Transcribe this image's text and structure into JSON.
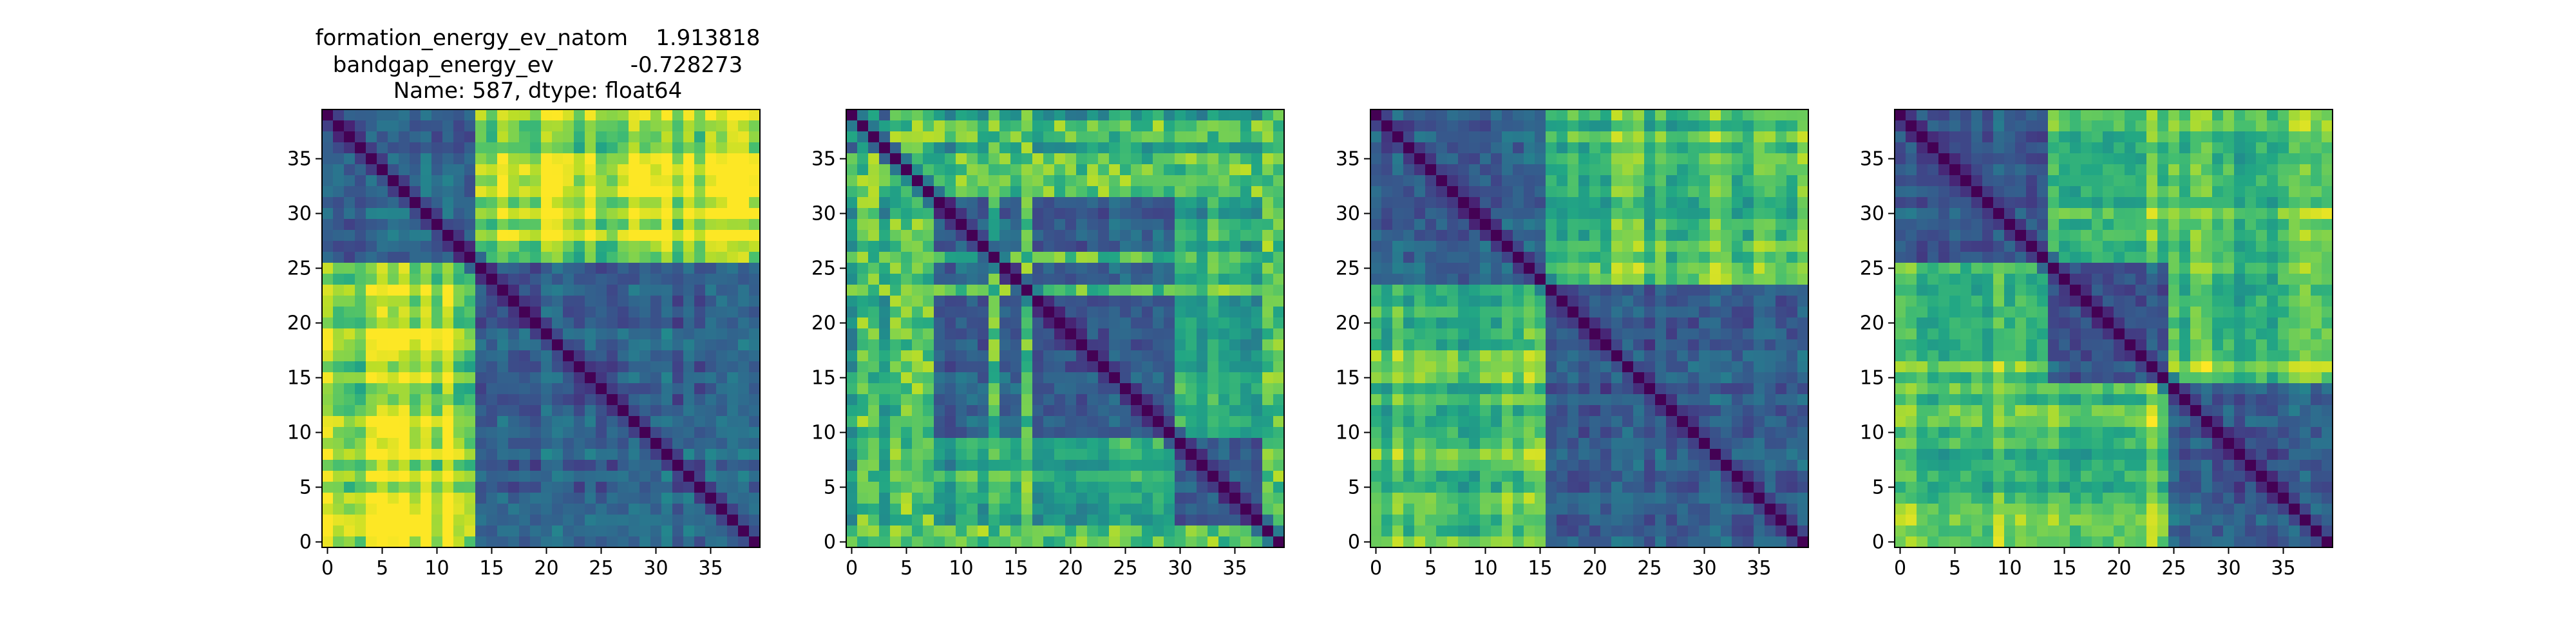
{
  "figure": {
    "background": "#ffffff",
    "title_lines": [
      "formation_energy_ev_natom    1.913818",
      "bandgap_energy_ev           -0.728273",
      "Name: 587, dtype: float64"
    ]
  },
  "chart_data": [
    {
      "type": "heatmap",
      "colormap": "viridis",
      "n": 40,
      "xlim": [
        -0.5,
        39.5
      ],
      "ylim": [
        39.5,
        -0.5
      ],
      "xticks": [
        0,
        5,
        10,
        15,
        20,
        25,
        30,
        35
      ],
      "yticks": [
        0,
        5,
        10,
        15,
        20,
        25,
        30,
        35
      ],
      "grid": false,
      "blocks": [
        {
          "start": 0,
          "end": 14
        },
        {
          "start": 14,
          "end": 40
        }
      ],
      "off_diag_value": 0.88,
      "within_value": 0.32,
      "diagonal_value": 0.0
    },
    {
      "type": "heatmap",
      "colormap": "viridis",
      "n": 40,
      "xlim": [
        -0.5,
        39.5
      ],
      "ylim": [
        39.5,
        -0.5
      ],
      "xticks": [
        0,
        5,
        10,
        15,
        20,
        25,
        30,
        35
      ],
      "yticks": [
        0,
        5,
        10,
        15,
        20,
        25,
        30,
        35
      ],
      "grid": false,
      "bright_rows": [
        1,
        2,
        4,
        5,
        6,
        7,
        13,
        16,
        38,
        39
      ],
      "blocks": [
        {
          "start": 0,
          "end": 8
        },
        {
          "start": 8,
          "end": 30
        },
        {
          "start": 30,
          "end": 40
        }
      ],
      "off_diag_value": 0.62,
      "within_value": 0.3,
      "diagonal_value": 0.0
    },
    {
      "type": "heatmap",
      "colormap": "viridis",
      "n": 40,
      "xlim": [
        -0.5,
        39.5
      ],
      "ylim": [
        39.5,
        -0.5
      ],
      "xticks": [
        0,
        5,
        10,
        15,
        20,
        25,
        30,
        35
      ],
      "yticks": [
        0,
        5,
        10,
        15,
        20,
        25,
        30,
        35
      ],
      "grid": false,
      "blocks": [
        {
          "start": 0,
          "end": 16
        },
        {
          "start": 16,
          "end": 40
        }
      ],
      "off_diag_value": 0.7,
      "within_value": 0.3,
      "diagonal_value": 0.0
    },
    {
      "type": "heatmap",
      "colormap": "viridis",
      "n": 40,
      "xlim": [
        -0.5,
        39.5
      ],
      "ylim": [
        39.5,
        -0.5
      ],
      "xticks": [
        0,
        5,
        10,
        15,
        20,
        25,
        30,
        35
      ],
      "yticks": [
        0,
        5,
        10,
        15,
        20,
        25,
        30,
        35
      ],
      "grid": false,
      "blocks": [
        {
          "start": 0,
          "end": 14
        },
        {
          "start": 14,
          "end": 25
        },
        {
          "start": 25,
          "end": 40
        }
      ],
      "off_diag_value": 0.75,
      "within_value": 0.3,
      "diagonal_value": 0.0
    }
  ]
}
